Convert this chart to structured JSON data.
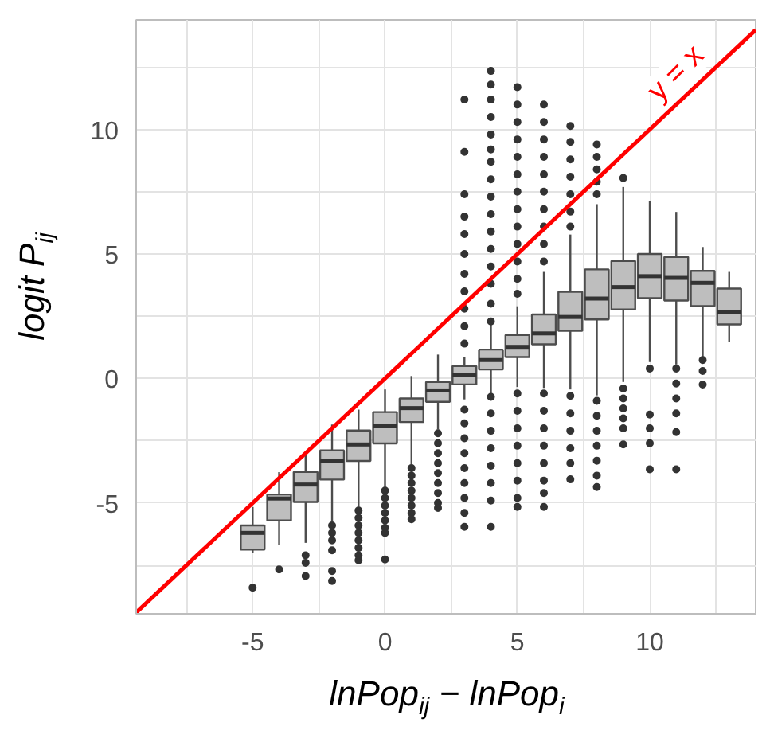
{
  "chart_data": {
    "type": "box",
    "xlabel": "lnPop$_{ij}$ − lnPop$_{i}$",
    "ylabel": "logit P$_{ij}$",
    "xlim": [
      -9.4,
      14
    ],
    "ylim": [
      -9.45,
      14.4
    ],
    "xticks": [
      {
        "value": -7.5,
        "label": null
      },
      -5,
      {
        "value": -2.5,
        "label": null
      },
      0,
      {
        "value": 2.5,
        "label": null
      },
      5,
      {
        "value": 7.5,
        "label": null
      },
      10,
      {
        "value": 12.5,
        "label": null
      }
    ],
    "yticks": [
      {
        "value": -7.5,
        "label": null
      },
      -5,
      {
        "value": -2.5,
        "label": null
      },
      0,
      {
        "value": 2.5,
        "label": null
      },
      5,
      {
        "value": 7.5,
        "label": null
      },
      10,
      {
        "value": 12.5,
        "label": null
      }
    ],
    "grid": true,
    "series": [
      {
        "color": "#bebebe",
        "x": [
          -5,
          -4,
          -3,
          -2,
          -1,
          0,
          1,
          2,
          3,
          4,
          5,
          6,
          7,
          8,
          9,
          10,
          11,
          12,
          13
        ],
        "boxes": [
          {
            "low": -7.0,
            "q1": -6.87,
            "median": -6.2,
            "q3": -5.9,
            "high": -5.16,
            "outliers": [
              -8.4
            ]
          },
          {
            "low": -6.7,
            "q1": -5.7,
            "median": -4.82,
            "q3": -4.66,
            "high": -3.76,
            "outliers": [
              -7.67
            ]
          },
          {
            "low": -6.6,
            "q1": -4.96,
            "median": -4.26,
            "q3": -3.75,
            "high": -3.05,
            "outliers": [
              -7.1,
              -7.4,
              -7.93
            ]
          },
          {
            "low": -5.76,
            "q1": -4.06,
            "median": -3.31,
            "q3": -2.89,
            "high": -1.85,
            "outliers": [
              -5.9,
              -6.2,
              -6.5,
              -6.9,
              -7.73,
              -8.13
            ]
          },
          {
            "low": -5.16,
            "q1": -3.31,
            "median": -2.65,
            "q3": -2.09,
            "high": -1.25,
            "outliers": [
              -5.3,
              -5.6,
              -5.9,
              -6.2,
              -6.5,
              -6.8,
              -7.1,
              -7.3
            ]
          },
          {
            "low": -4.4,
            "q1": -2.61,
            "median": -1.91,
            "q3": -1.35,
            "high": -0.44,
            "outliers": [
              -4.5,
              -4.8,
              -5.1,
              -5.4,
              -5.7,
              -6.0,
              -6.2,
              -7.27
            ]
          },
          {
            "low": -3.45,
            "q1": -1.75,
            "median": -1.19,
            "q3": -0.8,
            "high": 0.1,
            "outliers": [
              -3.6,
              -3.9,
              -4.2,
              -4.5,
              -4.8,
              -5.1,
              -5.4,
              -5.65
            ]
          },
          {
            "low": -2.05,
            "q1": -0.94,
            "median": -0.48,
            "q3": -0.14,
            "high": 0.96,
            "outliers": [
              -2.2,
              -2.6,
              -3.0,
              -3.4,
              -3.8,
              -4.2,
              -4.6,
              -5.0,
              -5.2
            ]
          },
          {
            "low": -0.84,
            "q1": -0.24,
            "median": 0.14,
            "q3": 0.5,
            "high": 0.86,
            "outliers": [
              11.2,
              9.1,
              7.4,
              6.5,
              5.8,
              5.0,
              4.2,
              3.5,
              2.8,
              2.1,
              1.4,
              -1.25,
              -1.8,
              -2.4,
              -3.0,
              -3.6,
              -4.2,
              -4.8,
              -5.4,
              -5.96
            ]
          },
          {
            "low": -0.64,
            "q1": 0.36,
            "median": 0.74,
            "q3": 1.16,
            "high": 2.17,
            "outliers": [
              12.35,
              11.8,
              11.2,
              10.5,
              9.8,
              9.2,
              8.7,
              8.0,
              7.3,
              6.6,
              5.9,
              5.2,
              4.5,
              3.8,
              3.0,
              2.29,
              -0.74,
              -1.4,
              -2.1,
              -2.8,
              -3.5,
              -4.2,
              -4.9,
              -5.96
            ]
          },
          {
            "low": -0.34,
            "q1": 0.86,
            "median": 1.27,
            "q3": 1.75,
            "high": 2.9,
            "outliers": [
              11.7,
              11.0,
              10.3,
              9.6,
              8.9,
              8.2,
              7.5,
              6.8,
              6.1,
              5.4,
              4.7,
              4.0,
              3.4,
              -0.6,
              -1.3,
              -2.0,
              -2.7,
              -3.4,
              -4.1,
              -4.8,
              -5.16
            ]
          },
          {
            "low": -0.38,
            "q1": 1.37,
            "median": 1.81,
            "q3": 2.57,
            "high": 4.28,
            "outliers": [
              11.0,
              10.3,
              9.6,
              8.9,
              8.2,
              7.5,
              6.8,
              6.1,
              5.4,
              4.7,
              -0.6,
              -1.3,
              -2.0,
              -2.7,
              -3.4,
              -4.1,
              -4.6,
              -5.16
            ]
          },
          {
            "low": -0.44,
            "q1": 1.91,
            "median": 2.47,
            "q3": 3.48,
            "high": 5.78,
            "outliers": [
              10.14,
              9.5,
              8.8,
              8.1,
              7.4,
              6.7,
              6.1,
              -0.7,
              -1.4,
              -2.1,
              -2.8,
              -3.4,
              -4.05
            ]
          },
          {
            "low": -0.68,
            "q1": 2.37,
            "median": 3.21,
            "q3": 4.38,
            "high": 7.0,
            "outliers": [
              9.4,
              8.9,
              8.4,
              7.9,
              7.4,
              -0.9,
              -1.5,
              -2.1,
              -2.7,
              -3.3,
              -3.9,
              -4.36
            ]
          },
          {
            "low": -0.14,
            "q1": 2.77,
            "median": 3.67,
            "q3": 4.72,
            "high": 7.69,
            "outliers": [
              8.05,
              -0.4,
              -0.8,
              -1.2,
              -1.6,
              -2.0,
              -2.65
            ]
          },
          {
            "low": 0.66,
            "q1": 3.23,
            "median": 4.11,
            "q3": 5.0,
            "high": 7.13,
            "outliers": [
              0.4,
              -1.45,
              -2.0,
              -2.6,
              -3.65
            ]
          },
          {
            "low": 0.56,
            "q1": 3.13,
            "median": 4.04,
            "q3": 4.88,
            "high": 6.69,
            "outliers": [
              0.4,
              -0.2,
              -0.8,
              -1.4,
              -2.15,
              -3.65
            ]
          },
          {
            "low": 0.86,
            "q1": 2.91,
            "median": 3.84,
            "q3": 4.32,
            "high": 5.28,
            "outliers": [
              0.74,
              0.3,
              -0.24
            ]
          },
          {
            "low": 1.46,
            "q1": 2.17,
            "median": 2.67,
            "q3": 3.61,
            "high": 4.28
          }
        ]
      },
      {
        "type": "line",
        "color": "#ff0000",
        "x": [
          -9.4,
          14
        ],
        "values": [
          -9.4,
          14
        ]
      }
    ],
    "annotations": [
      {
        "text": "y = x",
        "x": 11.6,
        "y": 11.6
      }
    ]
  }
}
